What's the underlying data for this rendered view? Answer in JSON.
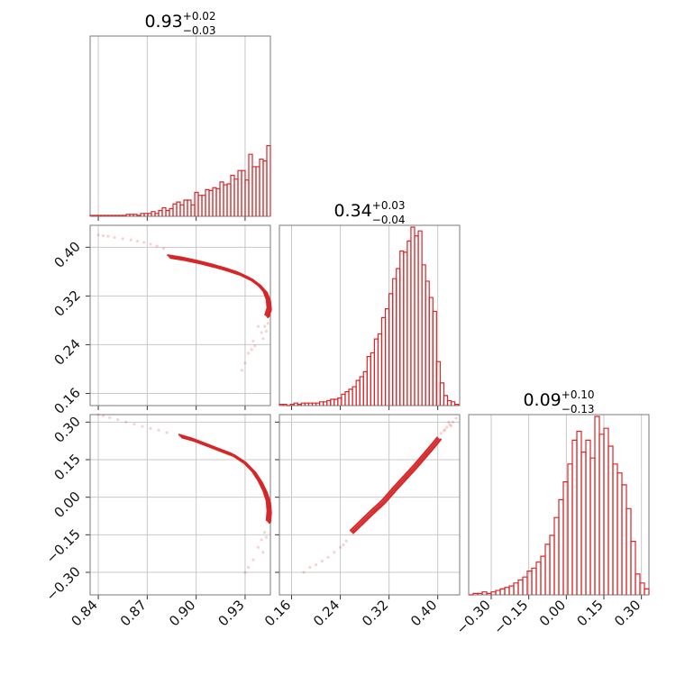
{
  "figure": {
    "type": "corner_plot",
    "accent_color": "#d62728"
  },
  "chart_data": [
    {
      "type": "histogram",
      "parameter_index": 0,
      "title": {
        "value": "0.93",
        "upper": "+0.02",
        "lower": "−0.03"
      },
      "xlim": [
        0.835,
        0.9455
      ],
      "x_ticks": [
        0.84,
        0.87,
        0.9,
        0.93
      ],
      "bin_edges_start": 0.835,
      "bin_width": 0.00221,
      "counts": [
        1,
        1,
        1,
        1,
        1,
        1,
        1,
        1,
        1,
        1,
        2,
        2,
        2,
        1,
        3,
        3,
        3,
        5,
        3,
        6,
        9,
        6,
        8,
        13,
        15,
        12,
        17,
        17,
        12,
        25,
        22,
        22,
        28,
        27,
        30,
        29,
        36,
        33,
        34,
        43,
        39,
        48,
        48,
        38,
        65,
        52,
        52,
        60,
        58,
        74,
        73,
        70,
        84,
        79,
        115,
        108,
        108,
        122,
        155,
        187,
        15
      ]
    },
    {
      "type": "histogram",
      "parameter_index": 1,
      "title": {
        "value": "0.34",
        "upper": "+0.03",
        "lower": "−0.04"
      },
      "xlim": [
        0.14,
        0.436
      ],
      "x_ticks": [
        0.16,
        0.24,
        0.32,
        0.4
      ],
      "bin_edges_start": 0.14,
      "bin_width": 0.006,
      "counts": [
        1,
        1,
        0,
        1,
        2,
        1,
        2,
        2,
        2,
        2,
        2,
        3,
        3,
        4,
        5,
        5,
        6,
        9,
        11,
        13,
        15,
        20,
        23,
        27,
        39,
        42,
        53,
        57,
        70,
        77,
        89,
        101,
        109,
        123,
        122,
        131,
        142,
        135,
        139,
        112,
        99,
        86,
        75,
        35,
        18,
        8,
        4,
        3,
        1
      ]
    },
    {
      "type": "histogram",
      "parameter_index": 2,
      "title": {
        "value": "0.09",
        "upper": "+0.10",
        "lower": "−0.13"
      },
      "xlim": [
        -0.39,
        0.33
      ],
      "x_ticks": [
        -0.3,
        -0.15,
        0.0,
        0.15,
        0.3
      ],
      "bin_edges_start": -0.39,
      "bin_width": 0.018,
      "counts": [
        0,
        1,
        1,
        2,
        1,
        2,
        3,
        4,
        5,
        6,
        8,
        10,
        12,
        16,
        18,
        22,
        26,
        34,
        40,
        52,
        64,
        76,
        88,
        104,
        110,
        96,
        104,
        92,
        120,
        108,
        112,
        100,
        88,
        82,
        74,
        58,
        36,
        14,
        8,
        4,
        3,
        2,
        1
      ]
    },
    {
      "type": "scatter_contour",
      "x_parameter": 0,
      "y_parameter": 1,
      "xlim": [
        0.835,
        0.9455
      ],
      "ylim": [
        0.14,
        0.436
      ],
      "x_ticks": [
        0.84,
        0.87,
        0.9,
        0.93
      ],
      "y_ticks": [
        0.16,
        0.24,
        0.32,
        0.4
      ],
      "y_tick_labels": [
        "0.16",
        "0.24",
        "0.32",
        "0.40"
      ],
      "contour_curve": [
        [
          0.883,
          0.385
        ],
        [
          0.892,
          0.381
        ],
        [
          0.901,
          0.376
        ],
        [
          0.91,
          0.37
        ],
        [
          0.918,
          0.364
        ],
        [
          0.926,
          0.357
        ],
        [
          0.933,
          0.348
        ],
        [
          0.938,
          0.338
        ],
        [
          0.942,
          0.326
        ],
        [
          0.944,
          0.312
        ],
        [
          0.9445,
          0.298
        ],
        [
          0.943,
          0.286
        ]
      ],
      "scatter_points": [
        [
          0.84,
          0.42
        ],
        [
          0.843,
          0.419
        ],
        [
          0.846,
          0.418
        ],
        [
          0.85,
          0.416
        ],
        [
          0.855,
          0.414
        ],
        [
          0.86,
          0.412
        ],
        [
          0.864,
          0.41
        ],
        [
          0.868,
          0.408
        ],
        [
          0.872,
          0.405
        ],
        [
          0.876,
          0.402
        ],
        [
          0.88,
          0.398
        ],
        [
          0.935,
          0.246
        ],
        [
          0.932,
          0.226
        ],
        [
          0.93,
          0.21
        ],
        [
          0.928,
          0.198
        ],
        [
          0.938,
          0.27
        ],
        [
          0.94,
          0.26
        ],
        [
          0.942,
          0.27
        ],
        [
          0.944,
          0.275
        ],
        [
          0.936,
          0.238
        ],
        [
          0.934,
          0.232
        ],
        [
          0.941,
          0.25
        ],
        [
          0.943,
          0.262
        ]
      ]
    },
    {
      "type": "scatter_contour",
      "x_parameter": 0,
      "y_parameter": 2,
      "xlim": [
        0.835,
        0.9455
      ],
      "ylim": [
        -0.39,
        0.33
      ],
      "x_ticks": [
        0.84,
        0.87,
        0.9,
        0.93
      ],
      "x_tick_labels": [
        "0.84",
        "0.87",
        "0.90",
        "0.93"
      ],
      "y_ticks": [
        -0.3,
        -0.15,
        0.0,
        0.15,
        0.3
      ],
      "y_tick_labels": [
        "−0.30",
        "−0.15",
        "0.00",
        "0.15",
        "0.30"
      ],
      "contour_curve": [
        [
          0.89,
          0.245
        ],
        [
          0.898,
          0.23
        ],
        [
          0.906,
          0.21
        ],
        [
          0.914,
          0.19
        ],
        [
          0.922,
          0.17
        ],
        [
          0.929,
          0.14
        ],
        [
          0.935,
          0.1
        ],
        [
          0.939,
          0.06
        ],
        [
          0.942,
          0.02
        ],
        [
          0.944,
          -0.02
        ],
        [
          0.9445,
          -0.06
        ],
        [
          0.944,
          -0.1
        ]
      ],
      "scatter_points": [
        [
          0.84,
          0.33
        ],
        [
          0.843,
          0.325
        ],
        [
          0.847,
          0.318
        ],
        [
          0.852,
          0.31
        ],
        [
          0.857,
          0.3
        ],
        [
          0.862,
          0.292
        ],
        [
          0.867,
          0.283
        ],
        [
          0.872,
          0.275
        ],
        [
          0.877,
          0.268
        ],
        [
          0.882,
          0.258
        ],
        [
          0.935,
          -0.25
        ],
        [
          0.932,
          -0.28
        ],
        [
          0.93,
          -0.3
        ],
        [
          0.938,
          -0.2
        ],
        [
          0.94,
          -0.17
        ],
        [
          0.942,
          -0.14
        ],
        [
          0.943,
          -0.16
        ],
        [
          0.941,
          -0.22
        ]
      ]
    },
    {
      "type": "scatter_contour",
      "x_parameter": 1,
      "y_parameter": 2,
      "xlim": [
        0.14,
        0.436
      ],
      "ylim": [
        -0.39,
        0.33
      ],
      "x_ticks": [
        0.16,
        0.24,
        0.32,
        0.4
      ],
      "x_tick_labels": [
        "0.16",
        "0.24",
        "0.32",
        "0.40"
      ],
      "y_ticks": [
        -0.3,
        -0.15,
        0.0,
        0.15,
        0.3
      ],
      "contour_curve": [
        [
          0.258,
          -0.14
        ],
        [
          0.275,
          -0.1
        ],
        [
          0.292,
          -0.06
        ],
        [
          0.31,
          -0.02
        ],
        [
          0.328,
          0.03
        ],
        [
          0.345,
          0.075
        ],
        [
          0.362,
          0.12
        ],
        [
          0.378,
          0.165
        ],
        [
          0.392,
          0.205
        ],
        [
          0.402,
          0.235
        ]
      ],
      "scatter_points": [
        [
          0.18,
          -0.3
        ],
        [
          0.19,
          -0.28
        ],
        [
          0.2,
          -0.27
        ],
        [
          0.21,
          -0.255
        ],
        [
          0.22,
          -0.24
        ],
        [
          0.23,
          -0.22
        ],
        [
          0.24,
          -0.2
        ],
        [
          0.245,
          -0.19
        ],
        [
          0.25,
          -0.175
        ],
        [
          0.41,
          0.265
        ],
        [
          0.415,
          0.28
        ],
        [
          0.42,
          0.29
        ],
        [
          0.425,
          0.3
        ],
        [
          0.43,
          0.315
        ],
        [
          0.405,
          0.255
        ],
        [
          0.412,
          0.27
        ],
        [
          0.418,
          0.3
        ],
        [
          0.422,
          0.285
        ]
      ]
    }
  ]
}
